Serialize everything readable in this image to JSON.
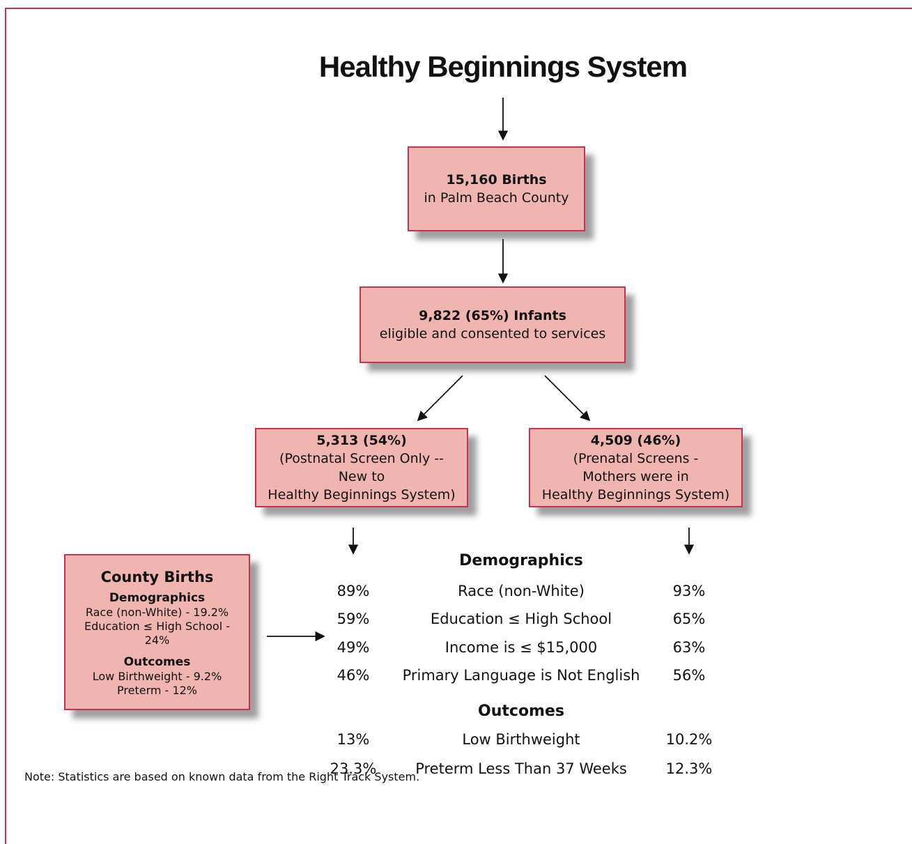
{
  "title": "Healthy Beginnings System",
  "boxes": [
    {
      "heading": "15,160 Births",
      "lines": [
        "in Palm Beach County"
      ]
    },
    {
      "heading": "9,822 (65%) Infants",
      "lines": [
        "eligible and consented to services"
      ]
    },
    {
      "heading": "5,313 (54%)",
      "lines": [
        "(Postnatal Screen Only --",
        "New to",
        "Healthy Beginnings System)"
      ]
    },
    {
      "heading": "4,509 (46%)",
      "lines": [
        "(Prenatal Screens -",
        "Mothers were in",
        "Healthy Beginnings System)"
      ]
    }
  ],
  "county": {
    "title": "County Births",
    "demographics_heading": "Demographics",
    "demographics": [
      "Race (non-White) - 19.2%",
      "Education ≤ High School - 24%"
    ],
    "outcomes_heading": "Outcomes",
    "outcomes": [
      "Low Birthweight - 9.2%",
      "Preterm - 12%"
    ]
  },
  "table": {
    "demographics_heading": "Demographics",
    "demographics": [
      [
        "89%",
        "Race (non-White)",
        "93%"
      ],
      [
        "59%",
        "Education ≤ High School",
        "65%"
      ],
      [
        "49%",
        "Income is ≤ $15,000",
        "63%"
      ],
      [
        "46%",
        "Primary Language is Not English",
        "56%"
      ]
    ],
    "outcomes_heading": "Outcomes",
    "outcomes": [
      [
        "13%",
        "Low Birthweight",
        "10.2%"
      ],
      [
        "23.3%",
        "Preterm Less Than 37 Weeks",
        "12.3%"
      ]
    ]
  },
  "note": "Note: Statistics are based on known data from the Right Track System."
}
